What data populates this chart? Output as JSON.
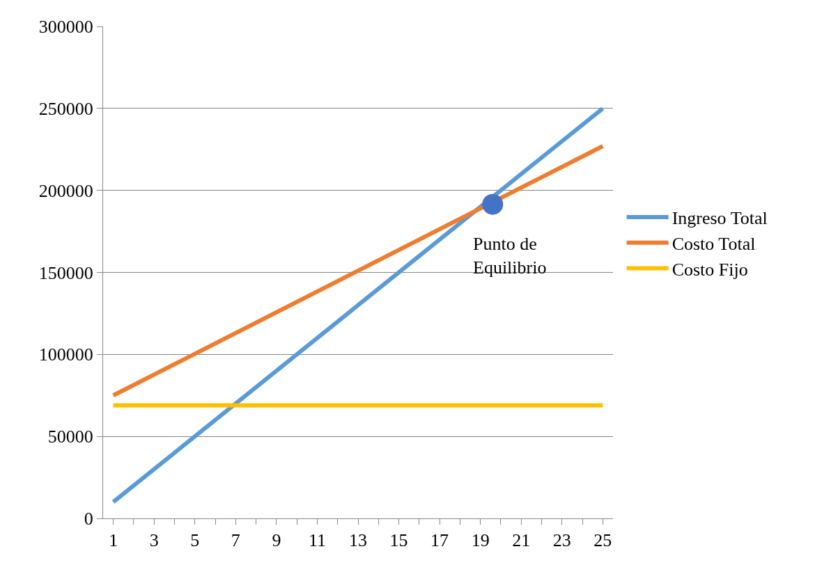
{
  "chart_data": {
    "type": "line",
    "series": [
      {
        "name": "Ingreso Total",
        "color": "#5b9bd5",
        "x": [
          1,
          25
        ],
        "values": [
          10000,
          250000
        ]
      },
      {
        "name": "Costo Total",
        "color": "#ed7d31",
        "x": [
          1,
          25
        ],
        "values": [
          75000,
          227000
        ]
      },
      {
        "name": "Costo Fijo",
        "color": "#ffc000",
        "x": [
          1,
          25
        ],
        "values": [
          69000,
          69000
        ]
      },
      {
        "type": "scatter",
        "color": "#4472c4",
        "x": [
          19.6
        ],
        "values": [
          191500
        ],
        "marker": "circle"
      }
    ],
    "annotations": [
      {
        "text": "Punto de Equilibrio",
        "x": 19.6,
        "y": 191500
      }
    ],
    "xlim": [
      0.5,
      25.5
    ],
    "xticks": [
      1,
      {
        "value": 2,
        "label": null
      },
      3,
      {
        "value": 4,
        "label": null
      },
      5,
      {
        "value": 6,
        "label": null
      },
      7,
      {
        "value": 8,
        "label": null
      },
      9,
      {
        "value": 10,
        "label": null
      },
      11,
      {
        "value": 12,
        "label": null
      },
      13,
      {
        "value": 14,
        "label": null
      },
      15,
      {
        "value": 16,
        "label": null
      },
      17,
      {
        "value": 18,
        "label": null
      },
      19,
      {
        "value": 20,
        "label": null
      },
      21,
      {
        "value": 22,
        "label": null
      },
      23,
      {
        "value": 24,
        "label": null
      },
      25
    ],
    "ylim": [
      0,
      300000
    ],
    "yticks": [
      0,
      50000,
      100000,
      150000,
      200000,
      250000,
      300000
    ],
    "grid": "y",
    "legend": "right",
    "marker": "none",
    "line_style": "solid"
  }
}
